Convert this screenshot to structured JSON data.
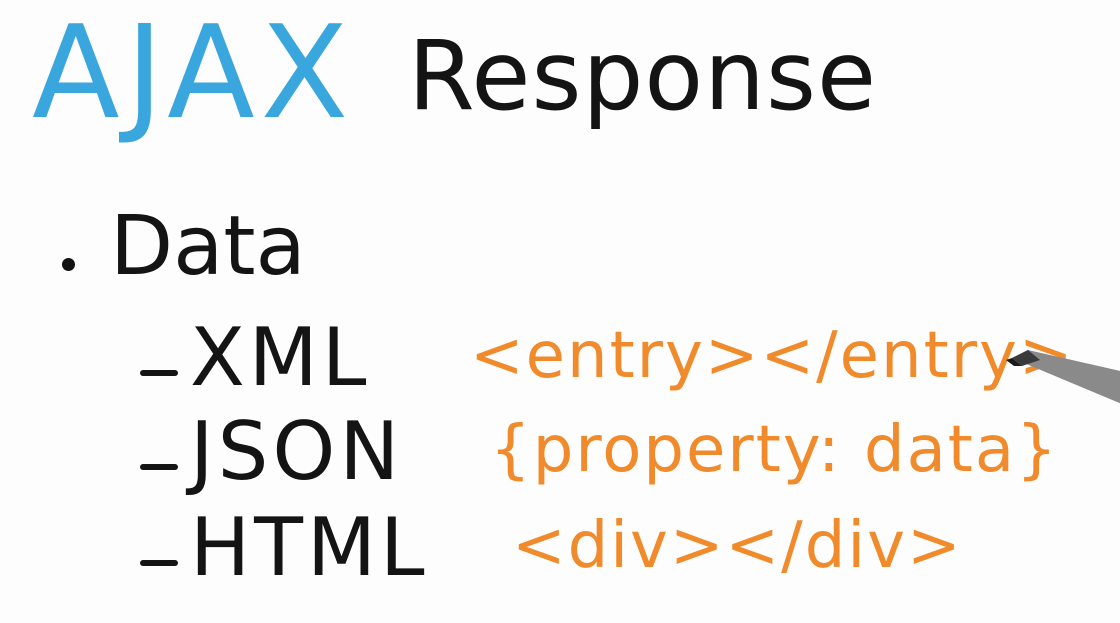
{
  "title": {
    "accent": "AJAX",
    "rest": "Response"
  },
  "bullet": {
    "label": "Data"
  },
  "formats": [
    {
      "name": "XML",
      "example": "<entry></entry>"
    },
    {
      "name": "JSON",
      "example": "{property: data}"
    },
    {
      "name": "HTML",
      "example": "<div></div>"
    }
  ],
  "colors": {
    "accent": "#3aa6de",
    "ink": "#141414",
    "highlight": "#f08a2a"
  }
}
